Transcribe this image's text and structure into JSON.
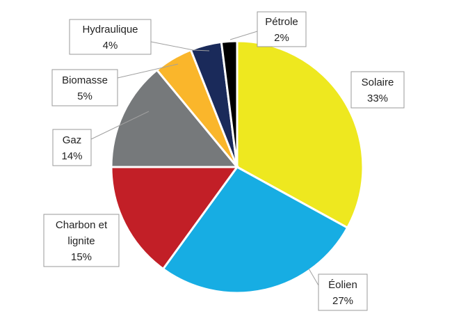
{
  "chart_data": {
    "type": "pie",
    "start_angle_deg": 0,
    "direction": "clockwise",
    "slices": [
      {
        "label": "Solaire",
        "value": 33,
        "value_label": "33%",
        "color": "#EEE81F"
      },
      {
        "label": "Éolien",
        "value": 27,
        "value_label": "27%",
        "color": "#17ADE3"
      },
      {
        "label": "Charbon et lignite",
        "label_lines": [
          "Charbon et",
          "lignite"
        ],
        "value": 15,
        "value_label": "15%",
        "color": "#C21F27"
      },
      {
        "label": "Gaz",
        "value": 14,
        "value_label": "14%",
        "color": "#76797B"
      },
      {
        "label": "Biomasse",
        "value": 5,
        "value_label": "5%",
        "color": "#FAB62B"
      },
      {
        "label": "Hydraulique",
        "value": 4,
        "value_label": "4%",
        "color": "#1A2A5A"
      },
      {
        "label": "Pétrole",
        "value": 2,
        "value_label": "2%",
        "color": "#000000"
      }
    ]
  }
}
